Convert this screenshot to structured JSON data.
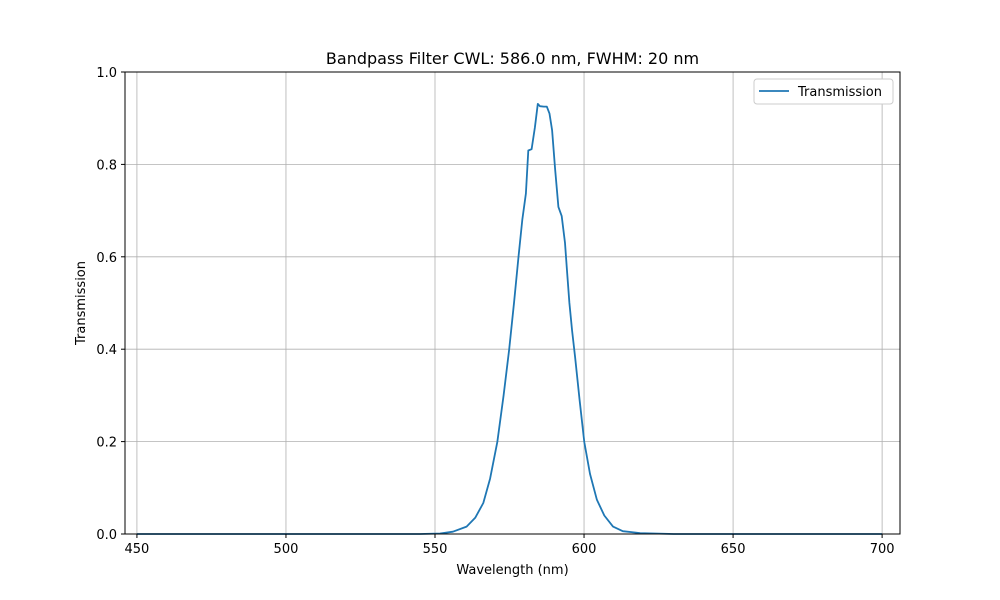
{
  "chart_data": {
    "type": "line",
    "title": "Bandpass Filter CWL: 586.0 nm, FWHM: 20 nm",
    "xlabel": "Wavelength (nm)",
    "ylabel": "Transmission",
    "xlim": [
      446,
      706
    ],
    "ylim": [
      0,
      1.0
    ],
    "xticks": [
      450,
      500,
      550,
      600,
      650,
      700
    ],
    "yticks": [
      0.0,
      0.2,
      0.4,
      0.6,
      0.8,
      1.0
    ],
    "xtick_labels": [
      "450",
      "500",
      "550",
      "600",
      "650",
      "700"
    ],
    "ytick_labels": [
      "0.0",
      "0.2",
      "0.4",
      "0.6",
      "0.8",
      "1.0"
    ],
    "grid": true,
    "legend_position": "top-right",
    "series": [
      {
        "name": "Transmission",
        "color": "#1f77b4",
        "x": [
          450,
          500,
          545,
          551.7,
          556,
          560.6,
          563.5,
          566.2,
          568.5,
          570.9,
          573,
          574.9,
          576.5,
          578.0,
          579.3,
          580.5,
          581.3,
          582.4,
          583.5,
          584.5,
          585.2,
          586.5,
          587.5,
          588.4,
          589.3,
          590.3,
          591.4,
          592.5,
          593.6,
          594.3,
          595.1,
          596,
          597,
          598.5,
          600.1,
          602,
          604.3,
          606.8,
          609.7,
          613,
          618.8,
          630,
          650,
          700
        ],
        "y": [
          0.0,
          0.0,
          0.0,
          0.001,
          0.005,
          0.016,
          0.035,
          0.067,
          0.12,
          0.199,
          0.3,
          0.4,
          0.5,
          0.6,
          0.68,
          0.737,
          0.83,
          0.833,
          0.88,
          0.931,
          0.926,
          0.925,
          0.925,
          0.91,
          0.874,
          0.79,
          0.708,
          0.688,
          0.63,
          0.57,
          0.5,
          0.44,
          0.383,
          0.29,
          0.199,
          0.13,
          0.074,
          0.04,
          0.016,
          0.006,
          0.002,
          0.0,
          0.0,
          0.0
        ]
      }
    ]
  }
}
